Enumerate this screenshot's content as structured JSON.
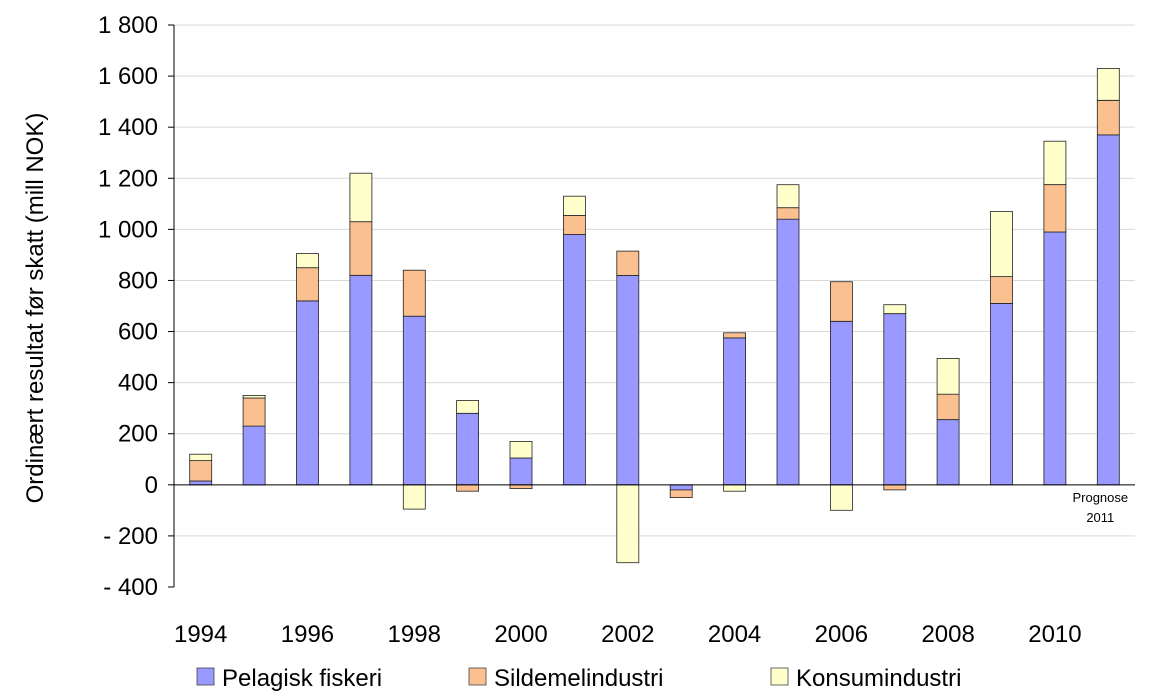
{
  "chart_data": {
    "type": "bar",
    "stacked": true,
    "title": "",
    "xlabel": "",
    "ylabel": "Ordinært resultat før skatt (mill NOK)",
    "ylim": [
      -400,
      1800
    ],
    "yticks": [
      1800,
      1600,
      1400,
      1200,
      1000,
      800,
      600,
      400,
      200,
      0,
      -200,
      -400
    ],
    "ytick_labels": [
      "1 800",
      "1 600",
      "1 400",
      "1 200",
      "1 000",
      "800",
      "600",
      "400",
      "200",
      "0",
      "- 200",
      "- 400"
    ],
    "categories": [
      "1994",
      "1995",
      "1996",
      "1997",
      "1998",
      "1999",
      "2000",
      "2001",
      "2002",
      "2003",
      "2004",
      "2005",
      "2006",
      "2007",
      "2008",
      "2009",
      "2010",
      "2011"
    ],
    "xtick_labels": [
      "1994",
      "1996",
      "1998",
      "2000",
      "2002",
      "2004",
      "2006",
      "2008",
      "2010"
    ],
    "grid": true,
    "legend": "bottom",
    "series": [
      {
        "name": "Pelagisk fiskeri",
        "color": "#9999ff",
        "values": [
          15,
          230,
          720,
          820,
          660,
          280,
          105,
          980,
          820,
          -20,
          575,
          1040,
          640,
          670,
          255,
          710,
          990,
          1370
        ]
      },
      {
        "name": "Sildemelindustri",
        "color": "#fac090",
        "values": [
          80,
          110,
          130,
          210,
          180,
          -25,
          -15,
          75,
          95,
          -30,
          20,
          45,
          155,
          -20,
          100,
          105,
          185,
          135
        ]
      },
      {
        "name": "Konsumindustri",
        "color": "#ffffcc",
        "values": [
          25,
          10,
          55,
          190,
          -95,
          50,
          65,
          75,
          -305,
          0,
          -25,
          90,
          -100,
          35,
          140,
          255,
          170,
          125
        ]
      }
    ],
    "annotations": [
      {
        "category": "2011",
        "text_lines": [
          "Prognose",
          "2011"
        ]
      }
    ]
  }
}
